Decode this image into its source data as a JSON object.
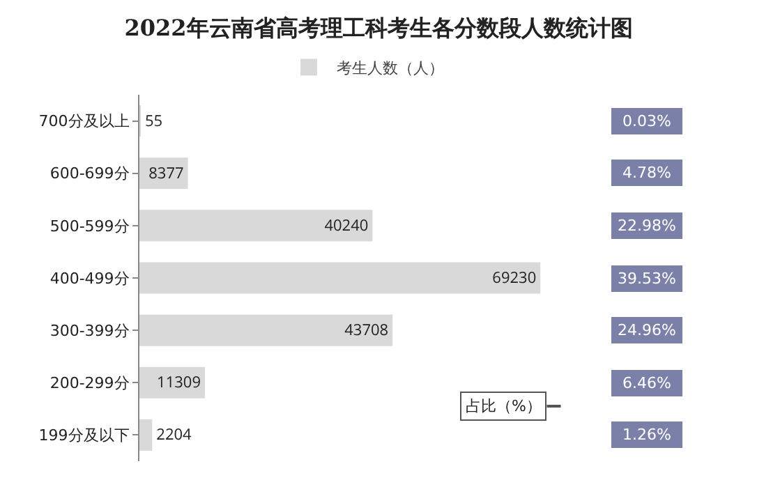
{
  "chart_data": {
    "type": "bar",
    "orientation": "horizontal",
    "title": "2022年云南省高考理工科考生各分数段人数统计图",
    "categories": [
      "700分及以上",
      "600-699分",
      "500-599分",
      "400-499分",
      "300-399分",
      "200-299分",
      "199分及以下"
    ],
    "series": [
      {
        "name": "考生人数（人）",
        "color": "#d9d9d9",
        "values": [
          55,
          8377,
          40240,
          69230,
          43708,
          11309,
          2204
        ]
      }
    ],
    "data_labels": true,
    "legend": "top",
    "grid": false,
    "annotations": [
      "0.03%",
      "4.78%",
      "22.98%",
      "39.53%",
      "24.96%",
      "6.46%",
      "1.26%",
      "占比（%）"
    ]
  }
}
